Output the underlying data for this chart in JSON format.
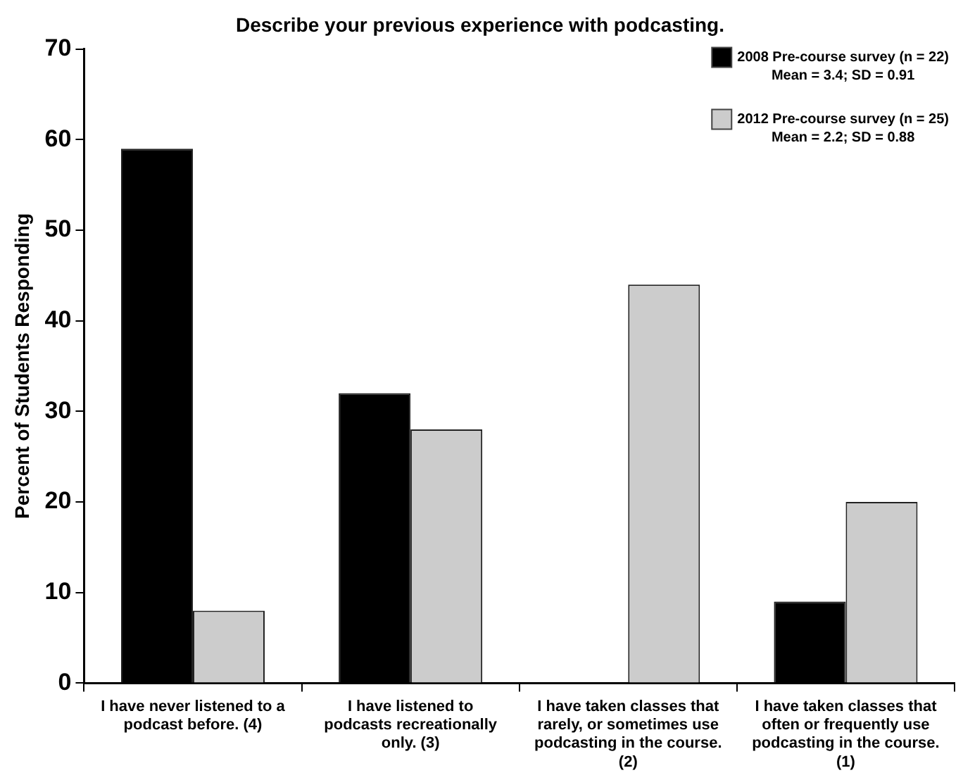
{
  "chart_data": {
    "type": "bar",
    "title": "Describe your previous experience with podcasting.",
    "ylabel": "Percent of Students Responding",
    "categories": [
      "I have never listened to a podcast before. (4)",
      "I have listened to podcasts recreationally only. (3)",
      "I have taken classes that rarely, or sometimes use podcasting in the course. (2)",
      "I have taken classes that often or frequently use podcasting in the course. (1)"
    ],
    "series": [
      {
        "name": "2008 Pre-course survey (n = 22)\nMean = 3.4; SD = 0.91",
        "color": "#000000",
        "values": [
          59,
          32,
          0,
          9
        ]
      },
      {
        "name": "2012 Pre-course survey (n = 25)\nMean = 2.2; SD = 0.88",
        "color": "#cccccc",
        "values": [
          8,
          28,
          44,
          20
        ]
      }
    ],
    "ylim": [
      0,
      70
    ],
    "yticks": [
      0,
      10,
      20,
      30,
      40,
      50,
      60,
      70
    ],
    "grid": false,
    "legend": "top right"
  }
}
